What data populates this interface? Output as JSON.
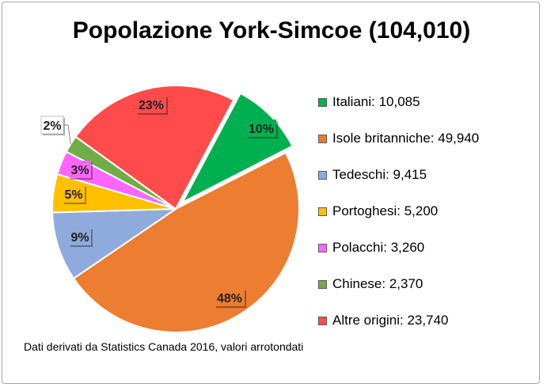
{
  "chart_data": {
    "type": "pie",
    "title": "Popolazione York-Simcoe (104,010)",
    "total": 104010,
    "slices": [
      {
        "name": "Italiani",
        "legend": "Italiani: 10,085",
        "value": 10085,
        "label": "10%",
        "color": "#00b050",
        "exploded": true
      },
      {
        "name": "Isole britanniche",
        "legend": "Isole britanniche: 49,940",
        "value": 49940,
        "label": "48%",
        "color": "#ed7d31",
        "exploded": false
      },
      {
        "name": "Tedeschi",
        "legend": "Tedeschi: 9,415",
        "value": 9415,
        "label": "9%",
        "color": "#8faadc",
        "exploded": false
      },
      {
        "name": "Portoghesi",
        "legend": "Portoghesi: 5,200",
        "value": 5200,
        "label": "5%",
        "color": "#ffc000",
        "exploded": false
      },
      {
        "name": "Polacchi",
        "legend": "Polacchi: 3,260",
        "value": 3260,
        "label": "3%",
        "color": "#ff66ff",
        "exploded": false
      },
      {
        "name": "Chinese",
        "legend": "Chinese: 2,370",
        "value": 2370,
        "label": "2%",
        "color": "#70ad47",
        "exploded": false
      },
      {
        "name": "Altre origini",
        "legend": "Altre origini: 23,740",
        "value": 23740,
        "label": "23%",
        "color": "#ff4b4b",
        "exploded": false
      }
    ],
    "legend_position": "right",
    "note": "Dati derivati da Statistics Canada 2016, valori arrotondati"
  }
}
